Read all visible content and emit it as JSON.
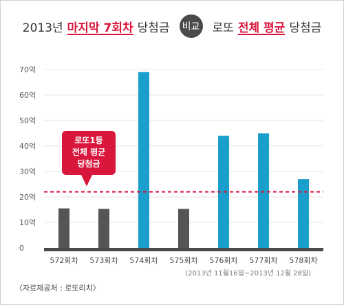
{
  "title": {
    "part1": "2013년",
    "part2": "마지막 7회차",
    "part3": "당첨금",
    "vs": "비교",
    "part4": "로또",
    "part5": "전체 평균",
    "part6": "당첨금"
  },
  "colors": {
    "accent": "#d9163c",
    "bar_dark": "#555555",
    "bar_blue": "#1a9fcc",
    "axis": "#4a4a4a"
  },
  "chart_data": {
    "type": "bar",
    "categories": [
      "572회차",
      "573회차",
      "574회차",
      "575회차",
      "576회차",
      "577회차",
      "578회차"
    ],
    "values": [
      15.5,
      15.3,
      69,
      15.3,
      44,
      45,
      27
    ],
    "bar_colors": [
      "#555555",
      "#555555",
      "#1a9fcc",
      "#555555",
      "#1a9fcc",
      "#1a9fcc",
      "#1a9fcc"
    ],
    "yticks": [
      "0",
      "10억",
      "20억",
      "30억",
      "40억",
      "50억",
      "60억",
      "70억"
    ],
    "ylim": [
      0,
      75
    ],
    "reference_line": {
      "value": 22,
      "color": "#d9163c",
      "style": "dashed"
    },
    "annotation": {
      "lines": [
        "로또1등",
        "전체 평균",
        "당첨금"
      ]
    },
    "grid": true
  },
  "period": "(2013년 11월16일~2013년 12월 28일)",
  "source": "〈자료제공처 : 로또리치〉"
}
